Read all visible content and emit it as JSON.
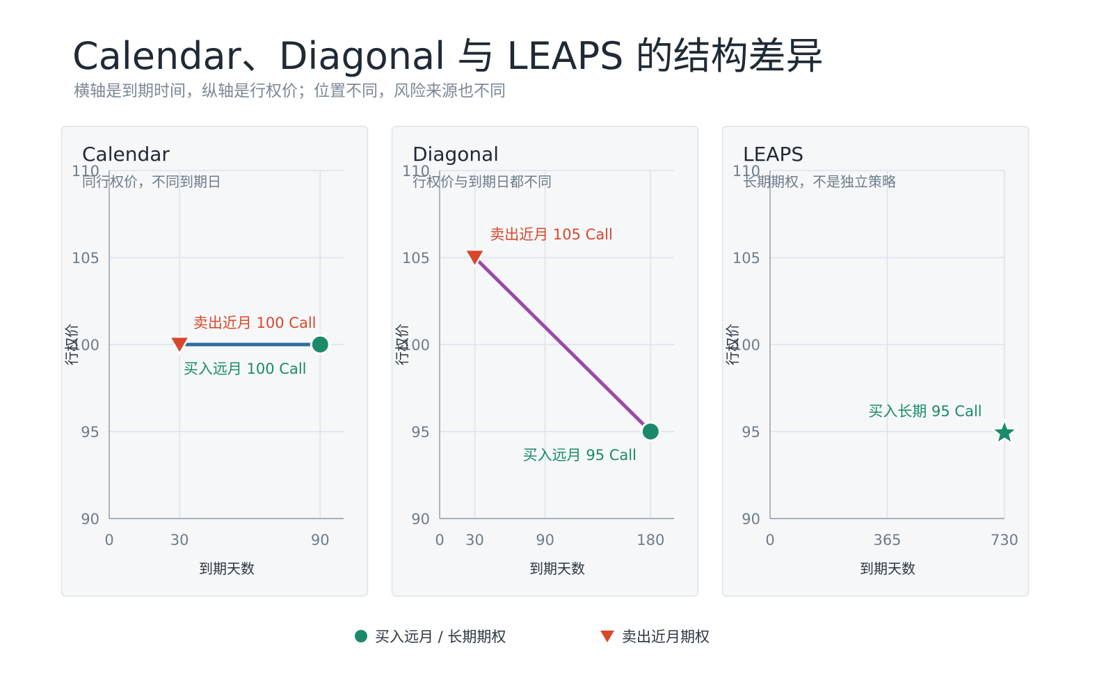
{
  "title": "Calendar、Diagonal 与 LEAPS 的结构差异",
  "subtitle": "横轴是到期时间，纵轴是行权价；位置不同，风险来源也不同",
  "colors": {
    "buy": "#1b8a6b",
    "sell": "#d9472b",
    "calendar_line": "#2c6e9e",
    "diagonal_line": "#9b4aa8",
    "panel_bg": "#f5f7f9",
    "panel_border": "#dde3e9",
    "grid": "#dbe3ec",
    "tick": "#6f7c88"
  },
  "legend": [
    {
      "label": "买入远月 / 长期期权",
      "marker": "circle",
      "color": "#1b8a6b"
    },
    {
      "label": "卖出近月期权",
      "marker": "triangle-down",
      "color": "#d9472b"
    }
  ],
  "chart_data": [
    {
      "type": "scatter",
      "title": "Calendar",
      "subtitle": "同行权价，不同到期日",
      "xlabel": "到期天数",
      "ylabel": "行权价",
      "xlim": [
        0,
        100
      ],
      "ylim": [
        90,
        110
      ],
      "xticks": [
        0,
        30,
        90
      ],
      "yticks": [
        90,
        95,
        100,
        105,
        110
      ],
      "grid": true,
      "connector": {
        "from": [
          30,
          100
        ],
        "to": [
          90,
          100
        ],
        "color": "#2c6e9e"
      },
      "points": [
        {
          "x": 30,
          "y": 100,
          "marker": "triangle-down",
          "role": "sell",
          "label": "卖出近月 100 Call",
          "label_pos": "above"
        },
        {
          "x": 90,
          "y": 100,
          "marker": "circle",
          "role": "buy",
          "label": "买入远月 100 Call",
          "label_pos": "below"
        }
      ]
    },
    {
      "type": "scatter",
      "title": "Diagonal",
      "subtitle": "行权价与到期日都不同",
      "xlabel": "到期天数",
      "ylabel": "行权价",
      "xlim": [
        0,
        200
      ],
      "ylim": [
        90,
        110
      ],
      "xticks": [
        0,
        30,
        90,
        180
      ],
      "yticks": [
        90,
        95,
        100,
        105,
        110
      ],
      "grid": true,
      "connector": {
        "from": [
          30,
          105
        ],
        "to": [
          180,
          95
        ],
        "color": "#9b4aa8"
      },
      "points": [
        {
          "x": 30,
          "y": 105,
          "marker": "triangle-down",
          "role": "sell",
          "label": "卖出近月 105 Call",
          "label_pos": "above"
        },
        {
          "x": 180,
          "y": 95,
          "marker": "circle",
          "role": "buy",
          "label": "买入远月 95 Call",
          "label_pos": "below"
        }
      ]
    },
    {
      "type": "scatter",
      "title": "LEAPS",
      "subtitle": "长期期权，不是独立策略",
      "xlabel": "到期天数",
      "ylabel": "行权价",
      "xlim": [
        0,
        730
      ],
      "ylim": [
        90,
        110
      ],
      "xticks": [
        0,
        365,
        730
      ],
      "yticks": [
        90,
        95,
        100,
        105,
        110
      ],
      "grid": true,
      "connector": null,
      "points": [
        {
          "x": 730,
          "y": 95,
          "marker": "star",
          "role": "buy",
          "label": "买入长期 95 Call",
          "label_pos": "above"
        }
      ]
    }
  ]
}
